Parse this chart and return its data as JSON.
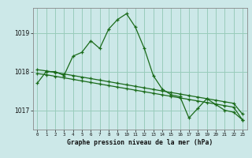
{
  "bg_color": "#cce8e8",
  "grid_color": "#99ccbb",
  "line_color": "#1a6b1a",
  "title": "Graphe pression niveau de la mer (hPa)",
  "xlim": [
    -0.5,
    23.5
  ],
  "ylim": [
    1016.5,
    1019.65
  ],
  "yticks": [
    1017,
    1018,
    1019
  ],
  "xticks": [
    0,
    1,
    2,
    3,
    4,
    5,
    6,
    7,
    8,
    9,
    10,
    11,
    12,
    13,
    14,
    15,
    16,
    17,
    18,
    19,
    20,
    21,
    22,
    23
  ],
  "series1_x": [
    0,
    1,
    2,
    3,
    4,
    5,
    6,
    7,
    8,
    9,
    10,
    11,
    12,
    13,
    14,
    15,
    16,
    17,
    18,
    19,
    20,
    21,
    22,
    23
  ],
  "series1_y": [
    1017.7,
    1018.0,
    1018.0,
    1017.9,
    1018.4,
    1018.5,
    1018.8,
    1018.6,
    1019.1,
    1019.35,
    1019.5,
    1019.15,
    1018.6,
    1017.9,
    1017.55,
    1017.4,
    1017.35,
    1016.8,
    1017.05,
    1017.3,
    1017.15,
    1017.0,
    1016.95,
    1016.75
  ],
  "series2_x": [
    0,
    1,
    2,
    3,
    4,
    5,
    6,
    7,
    8,
    9,
    10,
    11,
    12,
    13,
    14,
    15,
    16,
    17,
    18,
    19,
    20,
    21,
    22,
    23
  ],
  "series2_y": [
    1018.05,
    1018.02,
    1017.98,
    1017.94,
    1017.9,
    1017.86,
    1017.82,
    1017.78,
    1017.74,
    1017.7,
    1017.66,
    1017.62,
    1017.58,
    1017.54,
    1017.5,
    1017.46,
    1017.42,
    1017.38,
    1017.34,
    1017.3,
    1017.26,
    1017.22,
    1017.18,
    1016.9
  ],
  "series3_x": [
    0,
    1,
    2,
    3,
    4,
    5,
    6,
    7,
    8,
    9,
    10,
    11,
    12,
    13,
    14,
    15,
    16,
    17,
    18,
    19,
    20,
    21,
    22,
    23
  ],
  "series3_y": [
    1017.95,
    1017.92,
    1017.88,
    1017.84,
    1017.8,
    1017.76,
    1017.72,
    1017.68,
    1017.64,
    1017.6,
    1017.56,
    1017.52,
    1017.48,
    1017.44,
    1017.4,
    1017.36,
    1017.32,
    1017.28,
    1017.24,
    1017.2,
    1017.16,
    1017.12,
    1017.08,
    1016.75
  ]
}
